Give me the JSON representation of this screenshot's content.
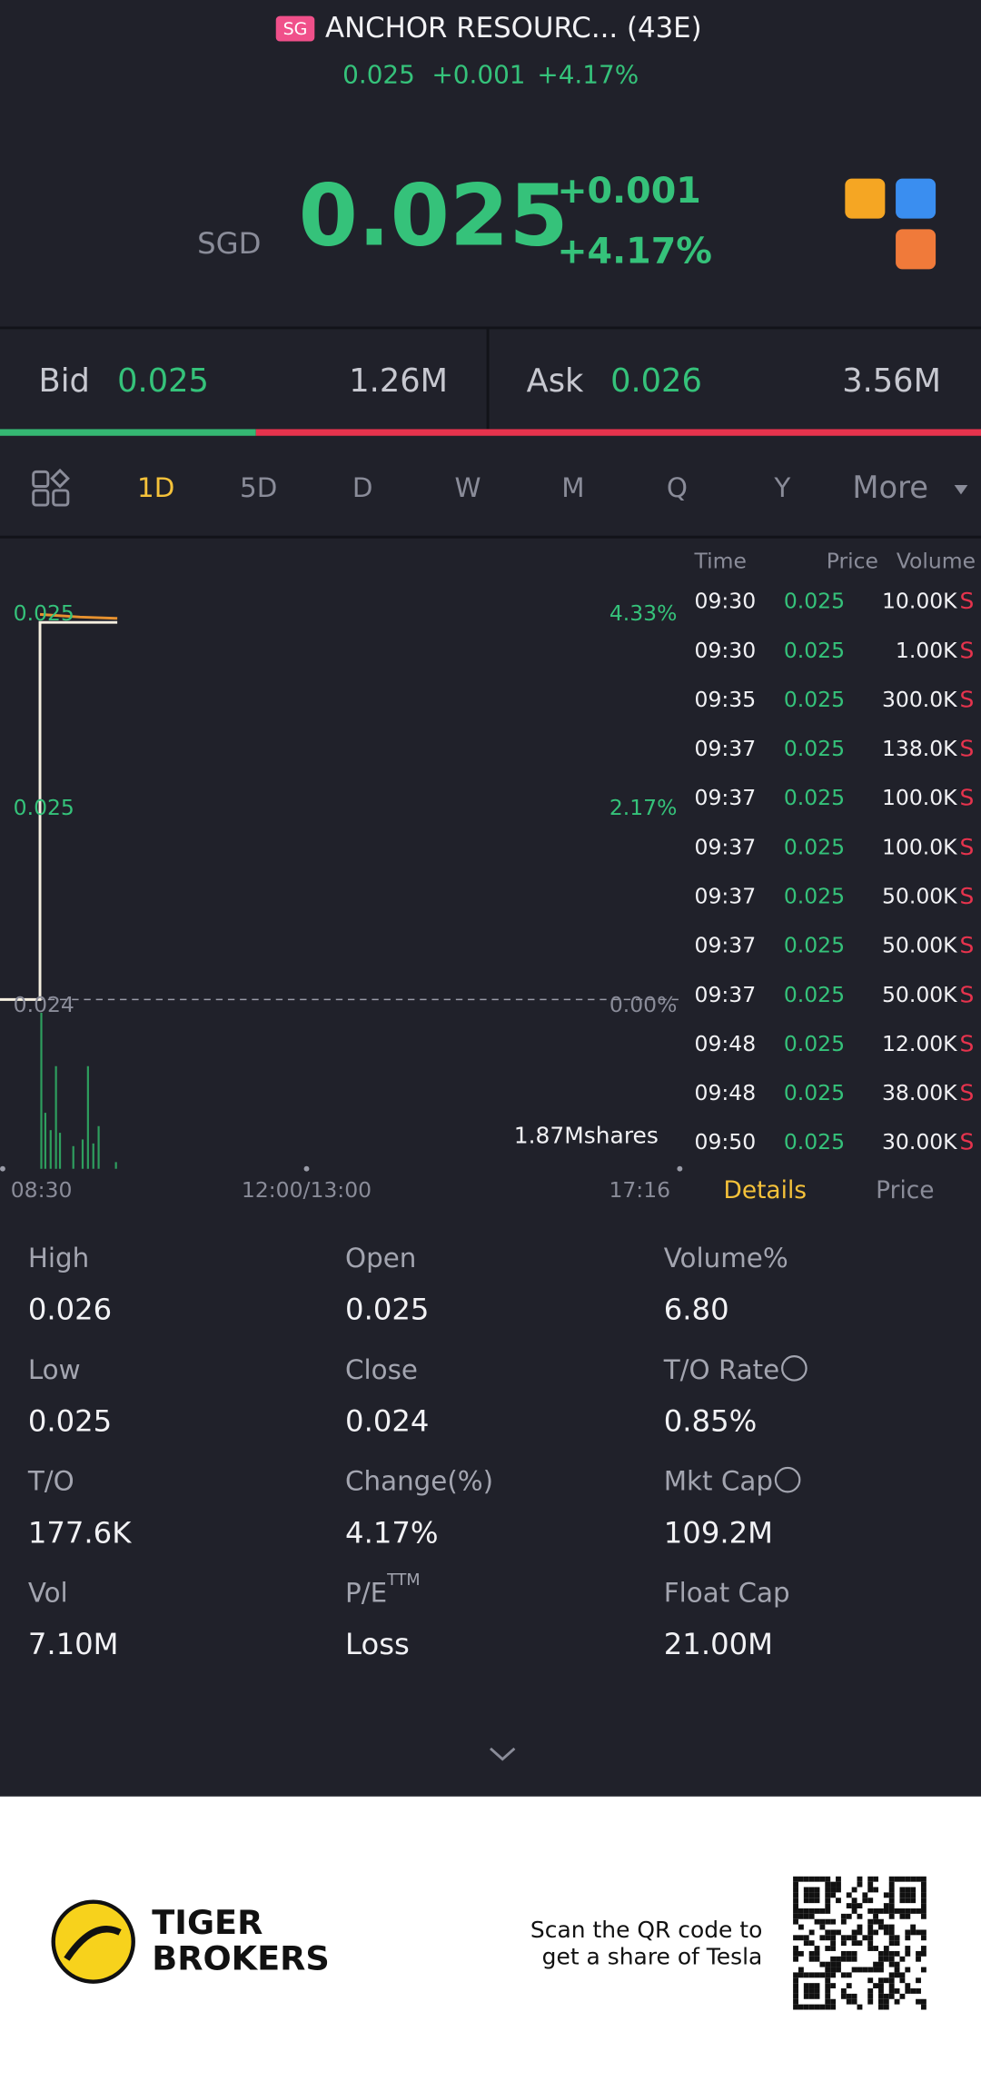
{
  "header": {
    "badge": "SG",
    "name": "ANCHOR RESOURC... (43E)",
    "price": "0.025",
    "change": "+0.001",
    "percent": "+4.17%"
  },
  "quote": {
    "currency": "SGD",
    "price": "0.025",
    "change": "+0.001",
    "percent": "+4.17%"
  },
  "bid_ask": {
    "bid_label": "Bid",
    "bid": "0.025",
    "bid_size": "1.26M",
    "ask_label": "Ask",
    "ask": "0.026",
    "ask_size": "3.56M"
  },
  "tabs": [
    "1D",
    "5D",
    "D",
    "W",
    "M",
    "Q",
    "Y",
    "More"
  ],
  "chart": {
    "left_labels": [
      "0.025",
      "0.025",
      "0.024"
    ],
    "right_labels": [
      "4.33%",
      "2.17%",
      "0.00%"
    ],
    "volume": "1.87Mshares",
    "time_labels": [
      "08:30",
      "12:00/13:00",
      "17:16"
    ]
  },
  "trades": {
    "headers": [
      "Time",
      "Price",
      "Volume"
    ],
    "rows": [
      [
        "09:30",
        "0.025",
        "10.00K",
        "S"
      ],
      [
        "09:30",
        "0.025",
        "1.00K",
        "S"
      ],
      [
        "09:35",
        "0.025",
        "300.0K",
        "S"
      ],
      [
        "09:37",
        "0.025",
        "138.0K",
        "S"
      ],
      [
        "09:37",
        "0.025",
        "100.0K",
        "S"
      ],
      [
        "09:37",
        "0.025",
        "100.0K",
        "S"
      ],
      [
        "09:37",
        "0.025",
        "50.00K",
        "S"
      ],
      [
        "09:37",
        "0.025",
        "50.00K",
        "S"
      ],
      [
        "09:37",
        "0.025",
        "50.00K",
        "S"
      ],
      [
        "09:48",
        "0.025",
        "12.00K",
        "S"
      ],
      [
        "09:48",
        "0.025",
        "38.00K",
        "S"
      ],
      [
        "09:50",
        "0.025",
        "30.00K",
        "S"
      ]
    ]
  },
  "detail_tabs": [
    "Details",
    "Price"
  ],
  "stats": [
    {
      "label": "High",
      "value": "0.026"
    },
    {
      "label": "Open",
      "value": "0.025"
    },
    {
      "label": "Volume%",
      "value": "6.80"
    },
    {
      "label": "Low",
      "value": "0.025"
    },
    {
      "label": "Close",
      "value": "0.024"
    },
    {
      "label": "T/O Rate",
      "value": "0.85%"
    },
    {
      "label": "T/O",
      "value": "177.6K"
    },
    {
      "label": "Change(%)",
      "value": "4.17%"
    },
    {
      "label": "Mkt Cap",
      "value": "109.2M"
    },
    {
      "label": "Vol",
      "value": "7.10M"
    },
    {
      "label": "P/E",
      "sup": "TTM",
      "value": "Loss"
    },
    {
      "label": "Float Cap",
      "value": "21.00M"
    }
  ],
  "footer": {
    "brand": [
      "TIGER",
      "BROKERS"
    ],
    "scan": [
      "Scan the QR code to",
      "get a share of Tesla"
    ]
  }
}
